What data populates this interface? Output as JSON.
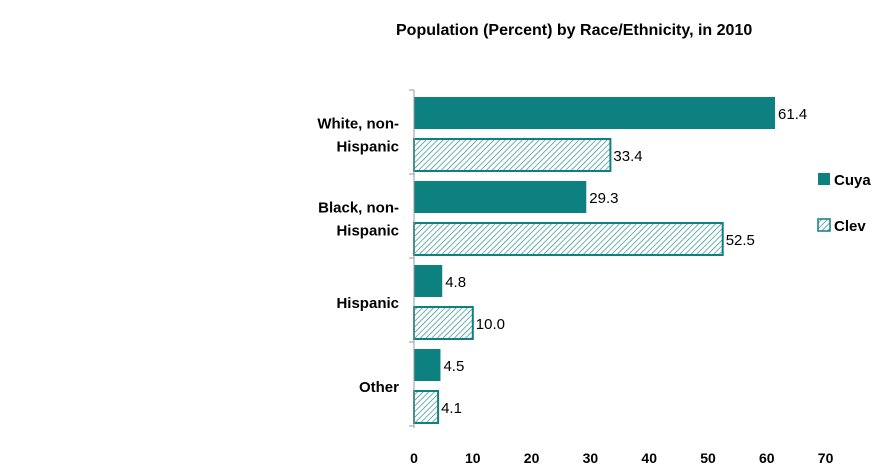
{
  "chart_data": {
    "type": "bar",
    "orientation": "horizontal",
    "title": "Population (Percent) by Race/Ethnicity, in 2010",
    "categories": [
      "White, non-Hispanic",
      "Black, non-Hispanic",
      "Hispanic",
      "Other"
    ],
    "category_label_lines": [
      [
        "White, non-",
        "Hispanic"
      ],
      [
        "Black, non-",
        "Hispanic"
      ],
      [
        "Hispanic"
      ],
      [
        "Other"
      ]
    ],
    "series": [
      {
        "name": "Cuya",
        "values": [
          61.4,
          29.3,
          4.8,
          4.5
        ],
        "value_labels": [
          "61.4",
          "29.3",
          "4.8",
          "4.5"
        ],
        "color": "#0d8080",
        "fill": "solid"
      },
      {
        "name": "Clev",
        "values": [
          33.4,
          52.5,
          10.0,
          4.1
        ],
        "value_labels": [
          "33.4",
          "52.5",
          "10.0",
          "4.1"
        ],
        "color": "#0d8080",
        "fill": "hatched"
      }
    ],
    "xlim": [
      0,
      70
    ],
    "x_ticks": [
      0,
      10,
      20,
      30,
      40,
      50,
      60,
      70
    ],
    "xlabel": "",
    "ylabel": "",
    "grid": false,
    "legend_position": "right"
  }
}
